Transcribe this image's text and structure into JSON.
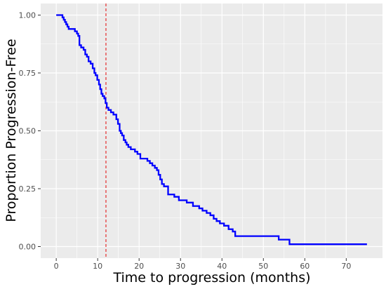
{
  "chart_data": {
    "type": "line",
    "subtype": "kaplan-meier step curve",
    "title": "",
    "xlabel": "Time to progression (months)",
    "ylabel": "Proportion Progression-Free",
    "xlim": [
      -3.75,
      78.75
    ],
    "ylim": [
      -0.05,
      1.05
    ],
    "x_ticks": [
      0,
      10,
      20,
      30,
      40,
      50,
      60,
      70
    ],
    "y_ticks": [
      0.0,
      0.25,
      0.5,
      0.75,
      1.0
    ],
    "y_tick_labels": [
      "0.00",
      "0.25",
      "0.50",
      "0.75",
      "1.00"
    ],
    "grid": true,
    "background": "#ebebeb",
    "grid_color": "#ffffff",
    "reference_line": {
      "x": 12,
      "color": "#e41a1c",
      "style": "dashed"
    },
    "series": [
      {
        "color": "#0000ff",
        "x": [
          0,
          1.5,
          1.8,
          2.1,
          2.4,
          2.7,
          3.0,
          3.5,
          4.5,
          5.0,
          5.3,
          5.6,
          6.0,
          6.6,
          7.0,
          7.4,
          7.8,
          8.3,
          8.8,
          9.2,
          9.5,
          9.9,
          10.3,
          10.6,
          10.9,
          11.2,
          11.6,
          11.9,
          12.2,
          12.6,
          13.2,
          13.8,
          14.5,
          14.9,
          15.3,
          15.6,
          15.9,
          16.3,
          16.7,
          17.0,
          17.4,
          18.0,
          19.0,
          19.6,
          20.3,
          21.0,
          22.0,
          22.6,
          23.2,
          23.8,
          24.3,
          24.7,
          25.1,
          25.5,
          26.0,
          27.0,
          28.5,
          29.6,
          31.5,
          33.0,
          34.5,
          35.3,
          36.3,
          37.2,
          38.0,
          38.7,
          39.5,
          40.5,
          41.6,
          42.6,
          43.2,
          53.0,
          53.7,
          56.3,
          75.0
        ],
        "y": [
          1.0,
          0.99,
          0.98,
          0.97,
          0.96,
          0.95,
          0.94,
          0.94,
          0.93,
          0.92,
          0.91,
          0.87,
          0.86,
          0.85,
          0.83,
          0.82,
          0.8,
          0.79,
          0.77,
          0.75,
          0.74,
          0.72,
          0.7,
          0.68,
          0.66,
          0.65,
          0.64,
          0.62,
          0.6,
          0.59,
          0.58,
          0.57,
          0.55,
          0.53,
          0.5,
          0.49,
          0.48,
          0.46,
          0.45,
          0.44,
          0.43,
          0.42,
          0.41,
          0.4,
          0.38,
          0.38,
          0.37,
          0.36,
          0.35,
          0.34,
          0.33,
          0.31,
          0.29,
          0.27,
          0.26,
          0.225,
          0.215,
          0.2,
          0.19,
          0.175,
          0.165,
          0.155,
          0.145,
          0.135,
          0.12,
          0.11,
          0.1,
          0.09,
          0.075,
          0.065,
          0.045,
          0.045,
          0.03,
          0.01,
          0.01
        ]
      }
    ]
  }
}
